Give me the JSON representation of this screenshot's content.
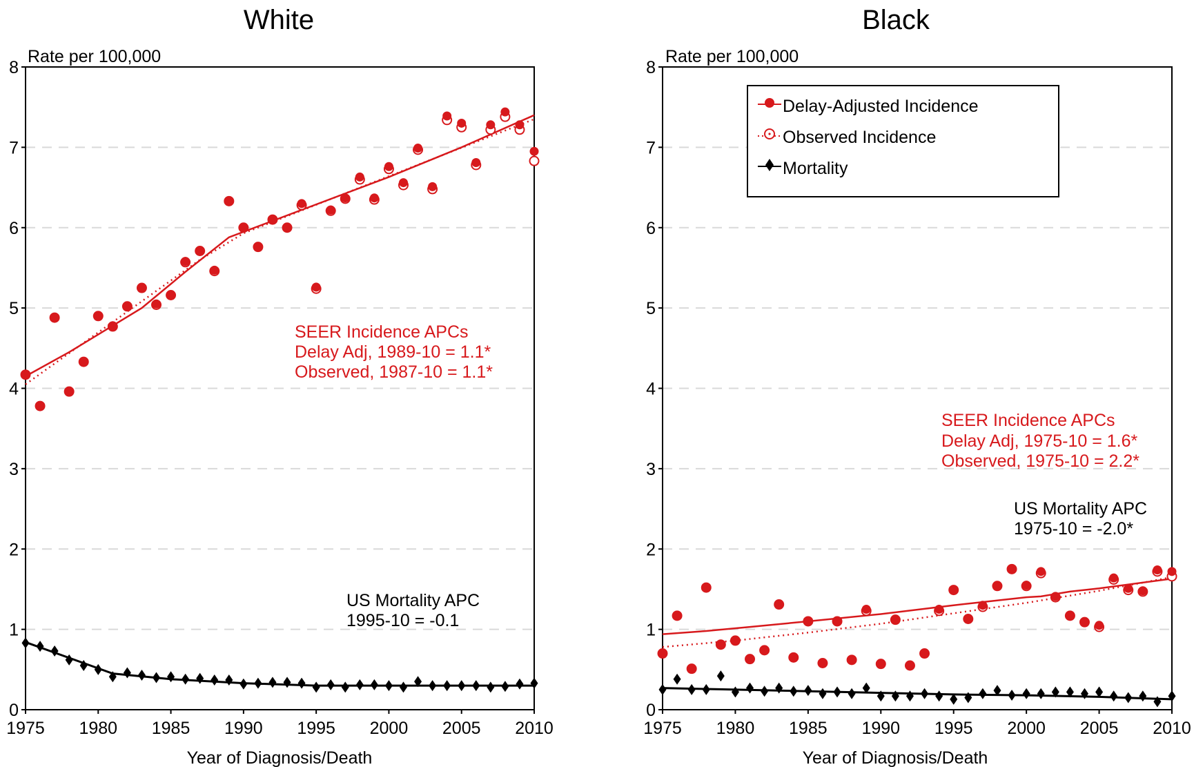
{
  "colors": {
    "incidence": "#d7191c",
    "mortality": "#000000",
    "grid": "#d9d9d9"
  },
  "chart_data": [
    {
      "type": "scatter",
      "title": "White",
      "ylabel": "Rate per 100,000",
      "xlabel": "Year of Diagnosis/Death",
      "xlim": [
        1975,
        2010
      ],
      "ylim": [
        0,
        8
      ],
      "xticks": [
        1975,
        1980,
        1985,
        1990,
        1995,
        2000,
        2005,
        2010
      ],
      "yticks": [
        0,
        1,
        2,
        3,
        4,
        5,
        6,
        7,
        8
      ],
      "grid": true,
      "years": [
        1975,
        1976,
        1977,
        1978,
        1979,
        1980,
        1981,
        1982,
        1983,
        1984,
        1985,
        1986,
        1987,
        1988,
        1989,
        1990,
        1991,
        1992,
        1993,
        1994,
        1995,
        1996,
        1997,
        1998,
        1999,
        2000,
        2001,
        2002,
        2003,
        2004,
        2005,
        2006,
        2007,
        2008,
        2009,
        2010
      ],
      "series": [
        {
          "name": "Delay-Adjusted Incidence",
          "kind": "filled-circle",
          "values": [
            4.17,
            3.78,
            4.88,
            3.96,
            4.33,
            4.9,
            4.77,
            5.02,
            5.25,
            5.05,
            5.16,
            5.58,
            5.71,
            5.47,
            6.33,
            6.0,
            5.76,
            6.1,
            6.0,
            6.3,
            5.26,
            6.22,
            6.37,
            6.63,
            6.37,
            6.76,
            6.56,
            6.99,
            6.51,
            7.39,
            7.3,
            6.81,
            7.28,
            7.44,
            7.28,
            6.95
          ]
        },
        {
          "name": "Observed Incidence",
          "kind": "open-circle",
          "values": [
            4.17,
            3.78,
            4.88,
            3.96,
            4.33,
            4.9,
            4.77,
            5.02,
            5.25,
            5.04,
            5.16,
            5.57,
            5.71,
            5.46,
            6.33,
            6.0,
            5.76,
            6.1,
            6.0,
            6.28,
            5.24,
            6.21,
            6.36,
            6.6,
            6.35,
            6.73,
            6.53,
            6.97,
            6.48,
            7.34,
            7.25,
            6.78,
            7.22,
            7.38,
            7.22,
            6.83
          ]
        },
        {
          "name": "Mortality",
          "kind": "diamond",
          "values": [
            0.83,
            0.79,
            0.73,
            0.62,
            0.55,
            0.5,
            0.41,
            0.46,
            0.43,
            0.4,
            0.41,
            0.38,
            0.39,
            0.37,
            0.37,
            0.32,
            0.33,
            0.34,
            0.34,
            0.33,
            0.28,
            0.31,
            0.28,
            0.31,
            0.31,
            0.3,
            0.28,
            0.35,
            0.3,
            0.3,
            0.3,
            0.3,
            0.28,
            0.29,
            0.32,
            0.33
          ]
        }
      ],
      "trends": [
        {
          "name": "Delay-Adjusted Incidence",
          "style": "solid",
          "points": [
            [
              1975,
              4.15
            ],
            [
              1978,
              4.45
            ],
            [
              1983,
              5.0
            ],
            [
              1986,
              5.45
            ],
            [
              1989,
              5.88
            ],
            [
              2000,
              6.63
            ],
            [
              2005,
              7.0
            ],
            [
              2010,
              7.4
            ]
          ]
        },
        {
          "name": "Observed Incidence",
          "style": "dotted",
          "points": [
            [
              1975,
              4.05
            ],
            [
              1987,
              5.6
            ],
            [
              1990,
              5.93
            ],
            [
              2010,
              7.35
            ]
          ]
        },
        {
          "name": "Mortality",
          "style": "solid",
          "points": [
            [
              1975,
              0.84
            ],
            [
              1981,
              0.45
            ],
            [
              1985,
              0.38
            ],
            [
              1990,
              0.33
            ],
            [
              1995,
              0.3
            ],
            [
              2010,
              0.3
            ]
          ]
        }
      ],
      "annotations": [
        {
          "kind": "incidence",
          "lines": [
            "SEER Incidence APCs",
            "Delay Adj, 1989-10 = 1.1*",
            "Observed, 1987-10 = 1.1*"
          ]
        },
        {
          "kind": "mortality",
          "lines": [
            "US Mortality APC",
            "1995-10 = -0.1"
          ]
        }
      ]
    },
    {
      "type": "scatter",
      "title": "Black",
      "ylabel": "Rate per 100,000",
      "xlabel": "Year of Diagnosis/Death",
      "xlim": [
        1975,
        2010
      ],
      "ylim": [
        0,
        8
      ],
      "xticks": [
        1975,
        1980,
        1985,
        1990,
        1995,
        2000,
        2005,
        2010
      ],
      "yticks": [
        0,
        1,
        2,
        3,
        4,
        5,
        6,
        7,
        8
      ],
      "grid": true,
      "legend": {
        "placement": "top",
        "entries": [
          "Delay-Adjusted Incidence",
          "Observed Incidence",
          "Mortality"
        ]
      },
      "years": [
        1975,
        1976,
        1977,
        1978,
        1979,
        1980,
        1981,
        1982,
        1983,
        1984,
        1985,
        1986,
        1987,
        1988,
        1989,
        1990,
        1991,
        1992,
        1993,
        1994,
        1995,
        1996,
        1997,
        1998,
        1999,
        2000,
        2001,
        2002,
        2003,
        2004,
        2005,
        2006,
        2007,
        2008,
        2009,
        2010
      ],
      "series": [
        {
          "name": "Delay-Adjusted Incidence",
          "kind": "filled-circle",
          "values": [
            0.7,
            1.17,
            0.51,
            1.52,
            0.81,
            0.86,
            0.63,
            0.74,
            1.31,
            0.65,
            1.1,
            0.58,
            1.1,
            0.62,
            1.25,
            0.57,
            1.12,
            0.55,
            0.7,
            1.25,
            1.49,
            1.13,
            1.3,
            1.54,
            1.75,
            1.55,
            1.72,
            1.41,
            1.17,
            1.09,
            1.05,
            1.64,
            1.51,
            1.48,
            1.74,
            1.72
          ]
        },
        {
          "name": "Observed Incidence",
          "kind": "open-circle",
          "values": [
            0.7,
            1.17,
            0.51,
            1.52,
            0.81,
            0.86,
            0.63,
            0.74,
            1.31,
            0.65,
            1.1,
            0.58,
            1.1,
            0.62,
            1.23,
            0.57,
            1.12,
            0.55,
            0.7,
            1.23,
            1.49,
            1.13,
            1.28,
            1.54,
            1.75,
            1.54,
            1.7,
            1.4,
            1.17,
            1.09,
            1.03,
            1.62,
            1.49,
            1.47,
            1.72,
            1.66
          ]
        },
        {
          "name": "Mortality",
          "kind": "diamond",
          "values": [
            0.25,
            0.38,
            0.25,
            0.25,
            0.42,
            0.22,
            0.27,
            0.23,
            0.27,
            0.23,
            0.24,
            0.2,
            0.22,
            0.2,
            0.27,
            0.17,
            0.17,
            0.17,
            0.2,
            0.17,
            0.13,
            0.15,
            0.2,
            0.24,
            0.18,
            0.2,
            0.2,
            0.22,
            0.22,
            0.2,
            0.22,
            0.17,
            0.15,
            0.17,
            0.1,
            0.17
          ]
        }
      ],
      "trends": [
        {
          "name": "Delay-Adjusted Incidence",
          "style": "solid",
          "points": [
            [
              1975,
              0.94
            ],
            [
              1978,
              0.98
            ],
            [
              1981,
              1.03
            ],
            [
              1985,
              1.1
            ],
            [
              1990,
              1.19
            ],
            [
              1995,
              1.3
            ],
            [
              2000,
              1.4
            ],
            [
              2001,
              1.41
            ],
            [
              2003,
              1.47
            ],
            [
              2005,
              1.51
            ],
            [
              2010,
              1.63
            ]
          ]
        },
        {
          "name": "Observed Incidence",
          "style": "dotted",
          "points": [
            [
              1975,
              0.78
            ],
            [
              1980,
              0.86
            ],
            [
              1985,
              0.96
            ],
            [
              1990,
              1.07
            ],
            [
              1995,
              1.2
            ],
            [
              2000,
              1.33
            ],
            [
              2005,
              1.48
            ],
            [
              2010,
              1.65
            ]
          ]
        },
        {
          "name": "Mortality",
          "style": "solid",
          "points": [
            [
              1975,
              0.27
            ],
            [
              1980,
              0.25
            ],
            [
              1985,
              0.23
            ],
            [
              1990,
              0.21
            ],
            [
              1995,
              0.19
            ],
            [
              2000,
              0.18
            ],
            [
              2005,
              0.16
            ],
            [
              2010,
              0.13
            ]
          ]
        }
      ],
      "annotations": [
        {
          "kind": "incidence",
          "lines": [
            "SEER Incidence APCs",
            "Delay Adj, 1975-10 = 1.6*",
            "Observed, 1975-10 = 2.2*"
          ]
        },
        {
          "kind": "mortality",
          "lines": [
            "US Mortality APC",
            "1975-10 = -2.0*"
          ]
        }
      ]
    }
  ]
}
